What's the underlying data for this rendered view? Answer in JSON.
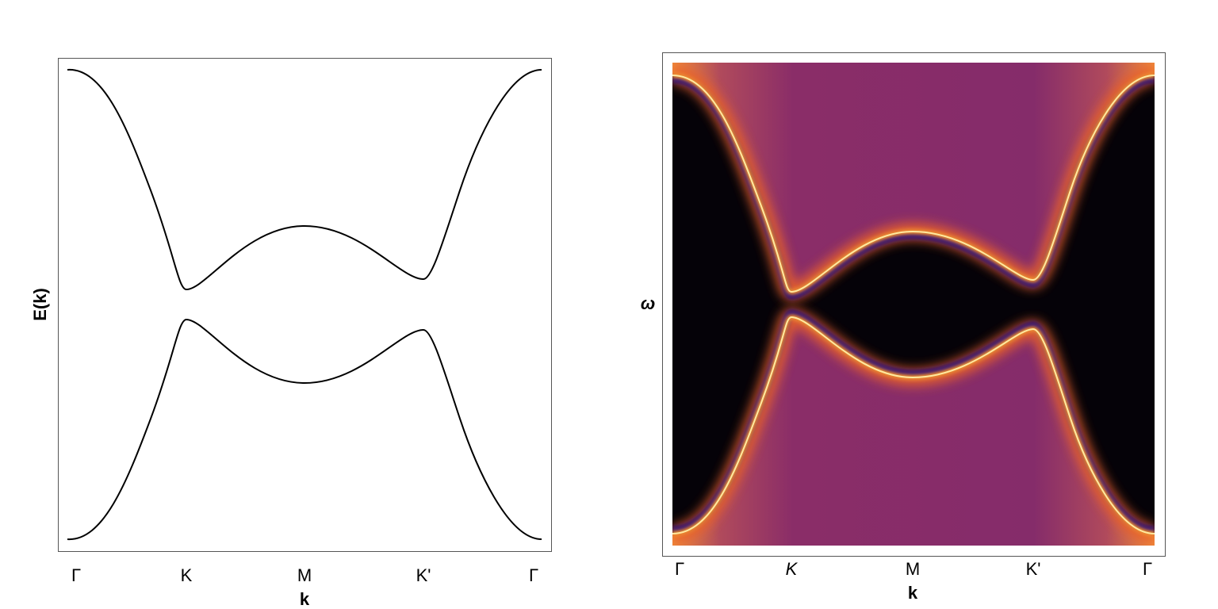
{
  "chart_data": [
    {
      "type": "line",
      "categories": [
        "Γ",
        "K",
        "M",
        "K'",
        "Γ"
      ],
      "xlabel": "k",
      "ylabel": "E(k)"
    },
    {
      "type": "heatmap",
      "categories": [
        "Γ",
        "K",
        "M",
        "K'",
        "Γ"
      ],
      "xlabel": "k",
      "ylabel": "ω"
    }
  ]
}
